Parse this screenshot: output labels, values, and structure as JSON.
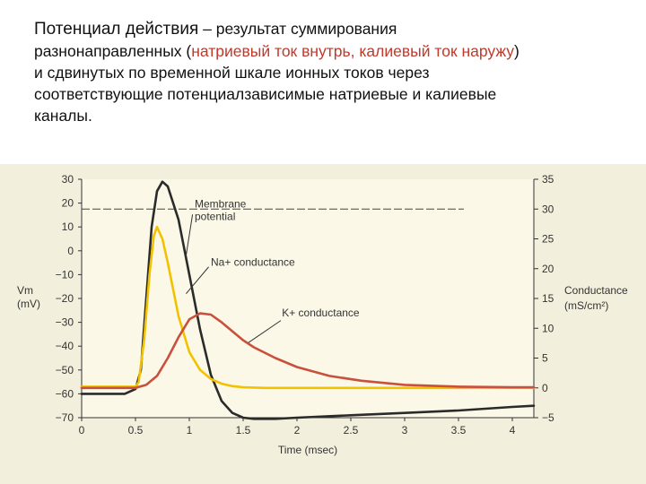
{
  "slide": {
    "title_lead": "Потенциал действия",
    "title_rest": " – результат суммирования",
    "line2_a": "разнонаправленных (",
    "line2_na": "натриевый ток внутрь,",
    "line2_sep": "  ",
    "line2_k": "калиевый ток наружу",
    "line2_b": ")",
    "line3": "и сдвинутых по временной шкале ионных токов через",
    "line4": "соответствующие потенциалзависимые натриевые и калиевые",
    "line5": "каналы."
  },
  "chart_data": {
    "type": "line",
    "xlabel": "Time (msec)",
    "ylabel_left": "Vm (mV)",
    "ylabel_right": "Conductance (mS/cm²)",
    "xlim": [
      0,
      4.2
    ],
    "ylim_left": [
      -70,
      30
    ],
    "ylim_right": [
      -5,
      35
    ],
    "x_ticks": [
      "0",
      "0.5",
      "1",
      "1.5",
      "2",
      "2.5",
      "3",
      "3.5",
      "4"
    ],
    "y_left_ticks": [
      "30",
      "20",
      "10",
      "0",
      "−10",
      "−20",
      "−30",
      "−40",
      "−50",
      "−60",
      "−70"
    ],
    "y_right_ticks": [
      "35",
      "30",
      "25",
      "20",
      "15",
      "10",
      "5",
      "0",
      "−5"
    ],
    "reference_line": {
      "y_right": 30,
      "style": "dashed"
    },
    "annotations": [
      {
        "text": "Membrane",
        "text2": "potential"
      },
      {
        "text": "Na+ conductance"
      },
      {
        "text": "K+ conductance"
      }
    ],
    "series": [
      {
        "name": "Membrane potential",
        "axis": "left",
        "color": "#2b2b2b",
        "x": [
          0,
          0.4,
          0.5,
          0.55,
          0.6,
          0.65,
          0.7,
          0.75,
          0.8,
          0.9,
          1.0,
          1.1,
          1.2,
          1.3,
          1.4,
          1.5,
          1.6,
          1.8,
          2.0,
          2.5,
          3.0,
          3.5,
          4.0,
          4.2
        ],
        "y": [
          -60,
          -60,
          -58,
          -50,
          -20,
          10,
          25,
          29,
          27,
          13,
          -10,
          -33,
          -52,
          -63,
          -68,
          -70,
          -70.5,
          -70.5,
          -70,
          -69,
          -68,
          -67,
          -65.5,
          -65
        ]
      },
      {
        "name": "Na+ conductance",
        "axis": "right",
        "color": "#f2c200",
        "x": [
          0,
          0.5,
          0.53,
          0.58,
          0.63,
          0.67,
          0.7,
          0.75,
          0.8,
          0.9,
          1.0,
          1.1,
          1.2,
          1.3,
          1.4,
          1.5,
          1.7,
          2.0,
          3.0,
          4.2
        ],
        "y": [
          0.2,
          0.2,
          1,
          8,
          19,
          25.5,
          27,
          25,
          21,
          12,
          6,
          3,
          1.5,
          0.7,
          0.3,
          0.1,
          0,
          0,
          0,
          0
        ]
      },
      {
        "name": "K+ conductance",
        "axis": "right",
        "color": "#c8503c",
        "x": [
          0,
          0.5,
          0.6,
          0.7,
          0.8,
          0.9,
          1.0,
          1.1,
          1.2,
          1.3,
          1.4,
          1.5,
          1.6,
          1.8,
          2.0,
          2.3,
          2.6,
          3.0,
          3.5,
          4.0,
          4.2
        ],
        "y": [
          0,
          0,
          0.5,
          2,
          5,
          8.5,
          11.5,
          12.5,
          12.3,
          11,
          9.5,
          8,
          6.8,
          5,
          3.5,
          2,
          1.2,
          0.5,
          0.2,
          0.1,
          0.1
        ]
      }
    ]
  }
}
